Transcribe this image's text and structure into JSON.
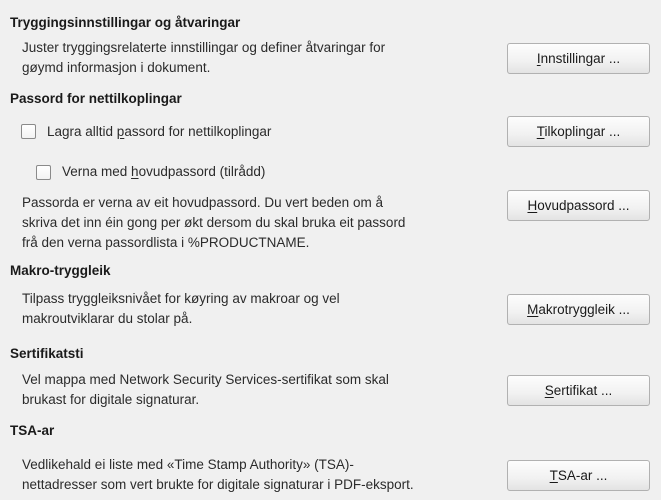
{
  "colors": {
    "background": "#f0f0f0",
    "heading_text": "#1a1a1a",
    "body_text": "#2b2b2b",
    "button_border": "#b1b1b1",
    "button_gradient_top": "#fdfdfd",
    "button_gradient_bottom": "#e3e3e3",
    "checkbox_border": "#8a8a8a"
  },
  "sections": [
    {
      "heading": "Tryggingsinnstillingar og åtvaringar",
      "body": [
        "Juster tryggingsrelaterte innstillingar og definer åtvaringar for",
        "gøymd informasjon i dokument."
      ],
      "button": {
        "pre": "",
        "accel": "I",
        "post": "nnstillingar ..."
      }
    },
    {
      "heading": "Passord for nettilkoplingar",
      "save_checkbox": {
        "pre": "Lagra alltid ",
        "accel": "p",
        "post": "assord for nettilkoplingar",
        "checked": false
      },
      "connections_button": {
        "pre": "",
        "accel": "T",
        "post": "ilkoplingar ..."
      },
      "master_checkbox": {
        "pre": "Verna med ",
        "accel": "h",
        "post": "ovudpassord (tilrådd)",
        "checked": false
      },
      "body": [
        "Passorda er verna av eit hovudpassord. Du vert beden om å",
        "skriva det inn éin gong per økt dersom du skal bruka eit passord",
        "frå den verna passordlista i %PRODUCTNAME."
      ],
      "master_button": {
        "pre": "",
        "accel": "H",
        "post": "ovudpassord ..."
      }
    },
    {
      "heading": "Makro-tryggleik",
      "body": [
        "Tilpass tryggleiksnivået for køyring av makroar og vel",
        "makroutviklarar du stolar på."
      ],
      "button": {
        "pre": "",
        "accel": "M",
        "post": "akrotryggleik ..."
      }
    },
    {
      "heading": "Sertifikatsti",
      "body": [
        "Vel mappa med Network Security Services-sertifikat som skal",
        "brukast for digitale signaturar."
      ],
      "button": {
        "pre": "",
        "accel": "S",
        "post": "ertifikat ..."
      }
    },
    {
      "heading": "TSA-ar",
      "body": [
        "Vedlikehald ei liste med «Time Stamp Authority» (TSA)-",
        "nettadresser som vert brukte for digitale signaturar i PDF-eksport."
      ],
      "button": {
        "pre": "",
        "accel": "T",
        "post": "SA-ar ..."
      }
    }
  ]
}
